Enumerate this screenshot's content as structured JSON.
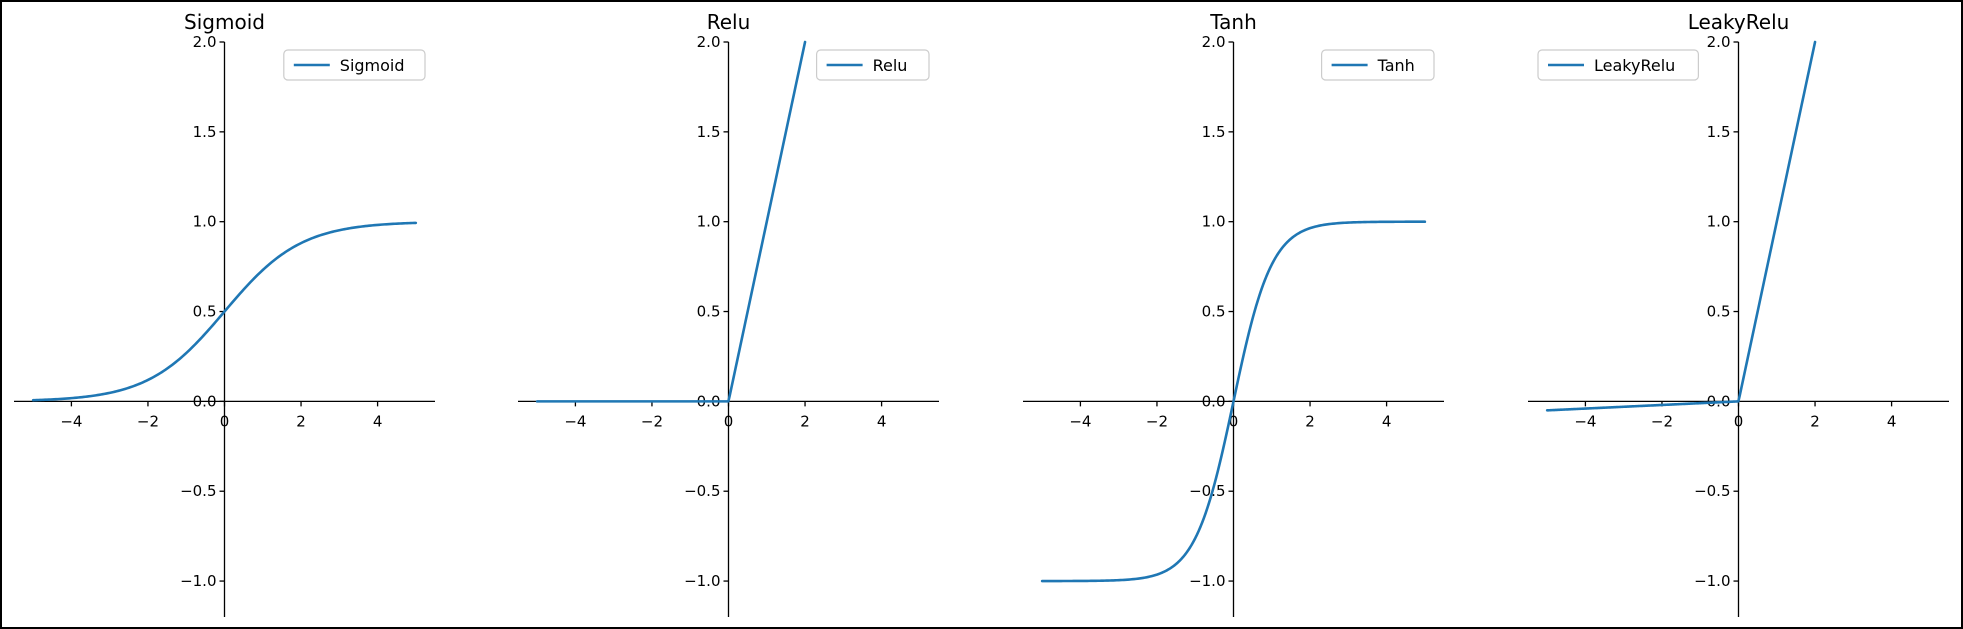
{
  "chart_data": [
    {
      "type": "line",
      "title": "Sigmoid",
      "function": "sigmoid",
      "xlim": [
        -5.5,
        5.5
      ],
      "ylim": [
        -1.2,
        2.0
      ],
      "x_range": [
        -5,
        5
      ],
      "xticks": [
        -4,
        -2,
        0,
        2,
        4
      ],
      "yticks": [
        -1.0,
        -0.5,
        0.0,
        0.5,
        1.0,
        1.5,
        2.0
      ],
      "legend": "top-right",
      "grid": false,
      "series": [
        {
          "name": "Sigmoid",
          "x": [
            -5,
            -4,
            -3,
            -2,
            -1,
            0,
            1,
            2,
            3,
            4,
            5
          ],
          "y": [
            0.007,
            0.018,
            0.047,
            0.119,
            0.269,
            0.5,
            0.731,
            0.881,
            0.953,
            0.982,
            0.993
          ]
        }
      ]
    },
    {
      "type": "line",
      "title": "Relu",
      "function": "relu",
      "xlim": [
        -5.5,
        5.5
      ],
      "ylim": [
        -1.2,
        2.0
      ],
      "x_range": [
        -5,
        2
      ],
      "xticks": [
        -4,
        -2,
        0,
        2,
        4
      ],
      "yticks": [
        -1.0,
        -0.5,
        0.0,
        0.5,
        1.0,
        1.5,
        2.0
      ],
      "legend": "top-right",
      "grid": false,
      "series": [
        {
          "name": "Relu",
          "x": [
            -5,
            0,
            2
          ],
          "y": [
            0,
            0,
            2
          ]
        }
      ]
    },
    {
      "type": "line",
      "title": "Tanh",
      "function": "tanh",
      "xlim": [
        -5.5,
        5.5
      ],
      "ylim": [
        -1.2,
        2.0
      ],
      "x_range": [
        -5,
        5
      ],
      "xticks": [
        -4,
        -2,
        0,
        2,
        4
      ],
      "yticks": [
        -1.0,
        -0.5,
        0.0,
        0.5,
        1.0,
        1.5,
        2.0
      ],
      "legend": "top-right",
      "grid": false,
      "series": [
        {
          "name": "Tanh",
          "x": [
            -5,
            -3,
            -2,
            -1,
            0,
            1,
            2,
            3,
            5
          ],
          "y": [
            -1.0,
            -0.995,
            -0.964,
            -0.762,
            0,
            0.762,
            0.964,
            0.995,
            1.0
          ]
        }
      ]
    },
    {
      "type": "line",
      "title": "LeakyRelu",
      "function": "leaky_relu",
      "xlim": [
        -5.5,
        5.5
      ],
      "ylim": [
        -1.2,
        2.0
      ],
      "x_range": [
        -5,
        2
      ],
      "xticks": [
        -4,
        -2,
        0,
        2,
        4
      ],
      "yticks": [
        -1.0,
        -0.5,
        0.0,
        0.5,
        1.0,
        1.5,
        2.0
      ],
      "legend": "top-left",
      "grid": false,
      "series": [
        {
          "name": "LeakyRelu",
          "x": [
            -5,
            0,
            2
          ],
          "y": [
            -0.05,
            0,
            2
          ]
        }
      ]
    }
  ],
  "colors": {
    "line": "#1f77b4",
    "axis": "#000000",
    "legend_border": "#cccccc"
  }
}
